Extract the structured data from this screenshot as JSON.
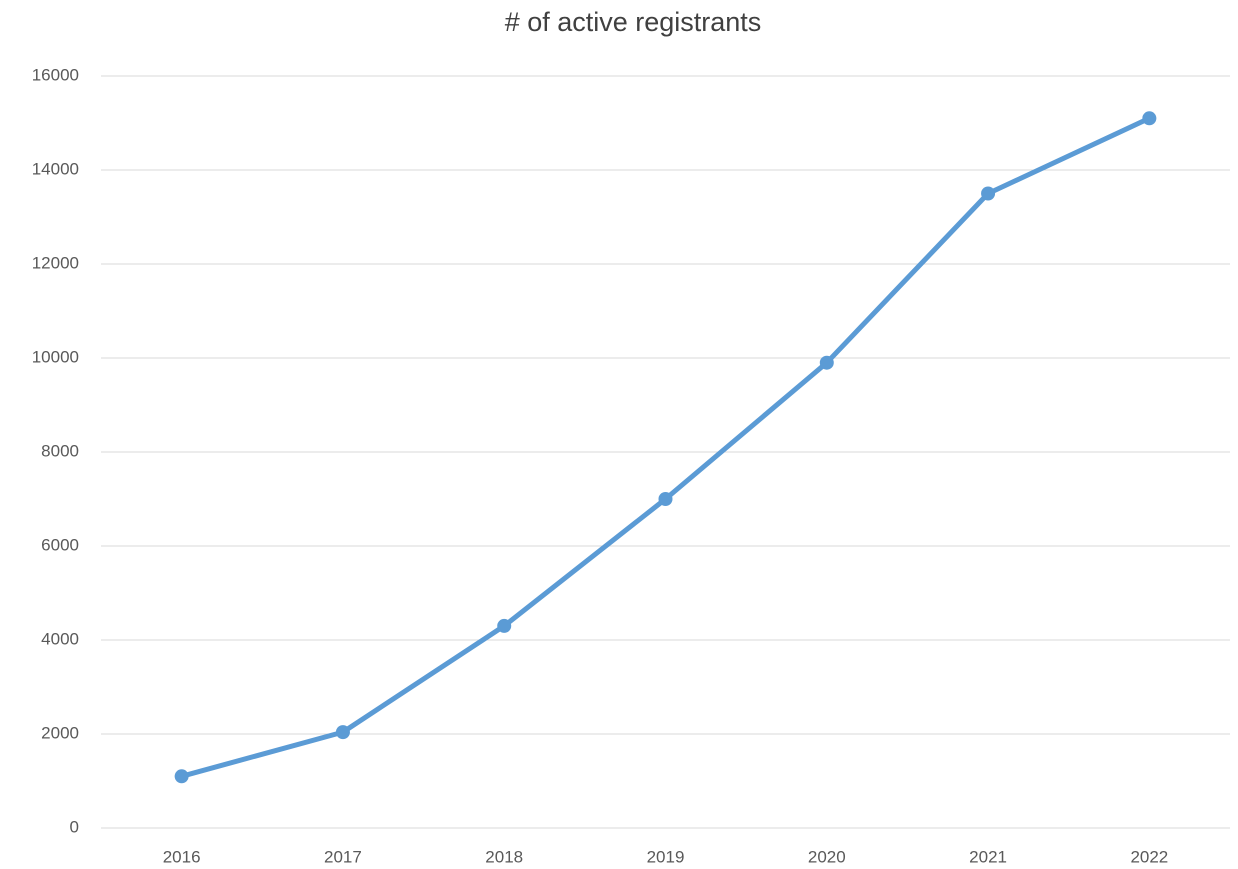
{
  "chart_data": {
    "type": "line",
    "title": "# of active registrants",
    "categories": [
      "2016",
      "2017",
      "2018",
      "2019",
      "2020",
      "2021",
      "2022"
    ],
    "series": [
      {
        "name": "# of active registrants",
        "color": "#5b9bd5",
        "values": [
          1100,
          2040,
          4300,
          7000,
          9900,
          13500,
          15100
        ]
      }
    ],
    "ylim": [
      0,
      16000
    ],
    "yticks": [
      0,
      2000,
      4000,
      6000,
      8000,
      10000,
      12000,
      14000,
      16000
    ],
    "grid": true
  }
}
